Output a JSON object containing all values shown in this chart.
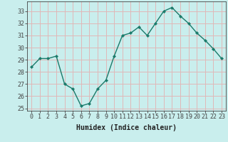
{
  "x": [
    0,
    1,
    2,
    3,
    4,
    5,
    6,
    7,
    8,
    9,
    10,
    11,
    12,
    13,
    14,
    15,
    16,
    17,
    18,
    19,
    20,
    21,
    22,
    23
  ],
  "y": [
    28.4,
    29.1,
    29.1,
    29.3,
    27.0,
    26.6,
    25.2,
    25.4,
    26.6,
    27.3,
    29.3,
    31.0,
    31.2,
    31.7,
    31.0,
    32.0,
    33.0,
    33.3,
    32.6,
    32.0,
    31.2,
    30.6,
    29.9,
    29.1
  ],
  "line_color": "#1a7a6a",
  "marker": "D",
  "marker_size": 2.2,
  "bg_color": "#c9eeed",
  "grid_color": "#e0b8b8",
  "axis_color": "#444444",
  "xlabel": "Humidex (Indice chaleur)",
  "ylabel": "",
  "title": "",
  "xlim": [
    -0.5,
    23.5
  ],
  "ylim": [
    24.8,
    33.8
  ],
  "yticks": [
    25,
    26,
    27,
    28,
    29,
    30,
    31,
    32,
    33
  ],
  "xticks": [
    0,
    1,
    2,
    3,
    4,
    5,
    6,
    7,
    8,
    9,
    10,
    11,
    12,
    13,
    14,
    15,
    16,
    17,
    18,
    19,
    20,
    21,
    22,
    23
  ],
  "xlabel_fontsize": 7,
  "tick_fontsize": 6
}
